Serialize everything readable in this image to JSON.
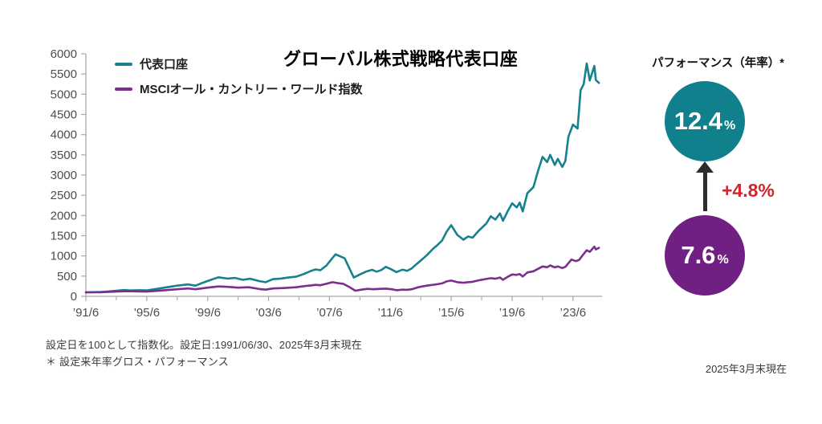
{
  "chart": {
    "title": "グローバル株式戦略代表口座"
  },
  "performance_panel": {
    "title": "パフォーマンス（年率）*",
    "fund": {
      "value": "12.4",
      "unit": "%",
      "color": "#10808d"
    },
    "index": {
      "value": "7.6",
      "unit": "%",
      "color": "#702082"
    },
    "difference": "+4.8%",
    "difference_color": "#d2262e",
    "arrow_color": "#2d2d2d"
  },
  "footnotes": {
    "line1": "設定日を100として指数化。設定日:1991/06/30、2025年3月末現在",
    "line2": "＊ 設定来年率グロス・パフォーマンス",
    "bottom_right": "2025年3月末現在"
  },
  "chart_data": {
    "type": "line",
    "title": "グローバル株式戦略代表口座",
    "xlabel": "",
    "ylabel": "",
    "ylim": [
      0,
      6000
    ],
    "x_range": [
      1991.5,
      2025.25
    ],
    "grid": false,
    "legend_position": "top-left",
    "y_ticks": [
      0,
      500,
      1000,
      1500,
      2000,
      2500,
      3000,
      3500,
      4000,
      4500,
      5000,
      5500,
      6000
    ],
    "x_tick_labels": [
      "’91/6",
      "’95/6",
      "’99/6",
      "’03/6",
      "’07/6",
      "’11/6",
      "’15/6",
      "’19/6",
      "’23/6"
    ],
    "x_tick_years": [
      1991.5,
      1995.5,
      1999.5,
      2003.5,
      2007.5,
      2011.5,
      2015.5,
      2019.5,
      2023.5
    ],
    "x_minor_tick_years": [
      1993.5,
      1997.5,
      2001.5,
      2005.5,
      2009.5,
      2013.5,
      2017.5,
      2021.5
    ],
    "axis_color": "#a9a9a9",
    "tick_label_color": "#4c4c4c",
    "base_index_value": 100,
    "series": [
      {
        "name": "代表口座",
        "color": "#17818e",
        "points": [
          [
            1991.5,
            100
          ],
          [
            1992,
            103
          ],
          [
            1992.5,
            108
          ],
          [
            1993,
            122
          ],
          [
            1993.5,
            140
          ],
          [
            1994,
            155
          ],
          [
            1994.4,
            145
          ],
          [
            1995,
            150
          ],
          [
            1995.5,
            147
          ],
          [
            1996,
            175
          ],
          [
            1996.5,
            205
          ],
          [
            1997,
            235
          ],
          [
            1997.5,
            265
          ],
          [
            1998.2,
            295
          ],
          [
            1998.7,
            265
          ],
          [
            1999,
            310
          ],
          [
            1999.5,
            380
          ],
          [
            2000.2,
            470
          ],
          [
            2000.8,
            440
          ],
          [
            2001.3,
            455
          ],
          [
            2001.8,
            410
          ],
          [
            2002.3,
            435
          ],
          [
            2002.9,
            375
          ],
          [
            2003.3,
            350
          ],
          [
            2003.8,
            425
          ],
          [
            2004.3,
            440
          ],
          [
            2004.8,
            465
          ],
          [
            2005.3,
            485
          ],
          [
            2005.8,
            550
          ],
          [
            2006.3,
            630
          ],
          [
            2006.6,
            665
          ],
          [
            2006.9,
            645
          ],
          [
            2007.3,
            760
          ],
          [
            2007.7,
            950
          ],
          [
            2007.9,
            1040
          ],
          [
            2008.2,
            990
          ],
          [
            2008.5,
            940
          ],
          [
            2008.8,
            700
          ],
          [
            2009.1,
            465
          ],
          [
            2009.5,
            540
          ],
          [
            2009.9,
            610
          ],
          [
            2010.3,
            655
          ],
          [
            2010.6,
            610
          ],
          [
            2010.9,
            650
          ],
          [
            2011.2,
            730
          ],
          [
            2011.5,
            680
          ],
          [
            2011.9,
            600
          ],
          [
            2012.3,
            660
          ],
          [
            2012.6,
            630
          ],
          [
            2012.9,
            690
          ],
          [
            2013.2,
            790
          ],
          [
            2013.6,
            920
          ],
          [
            2013.9,
            1020
          ],
          [
            2014.3,
            1175
          ],
          [
            2014.6,
            1270
          ],
          [
            2014.9,
            1380
          ],
          [
            2015.2,
            1600
          ],
          [
            2015.5,
            1760
          ],
          [
            2015.9,
            1520
          ],
          [
            2016.3,
            1400
          ],
          [
            2016.6,
            1480
          ],
          [
            2016.9,
            1450
          ],
          [
            2017.3,
            1620
          ],
          [
            2017.8,
            1800
          ],
          [
            2018.1,
            1980
          ],
          [
            2018.4,
            1900
          ],
          [
            2018.7,
            2050
          ],
          [
            2018.9,
            1870
          ],
          [
            2019.2,
            2100
          ],
          [
            2019.5,
            2300
          ],
          [
            2019.8,
            2200
          ],
          [
            2020,
            2320
          ],
          [
            2020.2,
            2100
          ],
          [
            2020.5,
            2550
          ],
          [
            2020.9,
            2700
          ],
          [
            2021.2,
            3100
          ],
          [
            2021.5,
            3450
          ],
          [
            2021.8,
            3320
          ],
          [
            2022,
            3500
          ],
          [
            2022.3,
            3250
          ],
          [
            2022.5,
            3400
          ],
          [
            2022.8,
            3200
          ],
          [
            2023,
            3350
          ],
          [
            2023.2,
            3950
          ],
          [
            2023.5,
            4250
          ],
          [
            2023.8,
            4150
          ],
          [
            2024,
            5100
          ],
          [
            2024.2,
            5250
          ],
          [
            2024.4,
            5760
          ],
          [
            2024.6,
            5340
          ],
          [
            2024.9,
            5700
          ],
          [
            2025,
            5350
          ],
          [
            2025.2,
            5280
          ]
        ]
      },
      {
        "name": "MSCIオール・カントリー・ワールド指数",
        "color": "#7c2e8c",
        "points": [
          [
            1991.5,
            100
          ],
          [
            1992.5,
            102
          ],
          [
            1993.5,
            118
          ],
          [
            1994.2,
            128
          ],
          [
            1995,
            122
          ],
          [
            1995.5,
            118
          ],
          [
            1996.5,
            145
          ],
          [
            1997.5,
            175
          ],
          [
            1998.2,
            195
          ],
          [
            1998.7,
            175
          ],
          [
            1999.5,
            215
          ],
          [
            2000.2,
            245
          ],
          [
            2000.8,
            235
          ],
          [
            2001.5,
            215
          ],
          [
            2002.2,
            225
          ],
          [
            2002.9,
            180
          ],
          [
            2003.3,
            165
          ],
          [
            2003.8,
            195
          ],
          [
            2004.5,
            205
          ],
          [
            2005.3,
            225
          ],
          [
            2005.8,
            250
          ],
          [
            2006.3,
            270
          ],
          [
            2006.6,
            285
          ],
          [
            2006.9,
            275
          ],
          [
            2007.3,
            310
          ],
          [
            2007.7,
            350
          ],
          [
            2008,
            330
          ],
          [
            2008.4,
            310
          ],
          [
            2008.8,
            230
          ],
          [
            2009.2,
            140
          ],
          [
            2009.6,
            165
          ],
          [
            2010,
            185
          ],
          [
            2010.4,
            175
          ],
          [
            2010.8,
            185
          ],
          [
            2011.2,
            190
          ],
          [
            2011.6,
            175
          ],
          [
            2011.9,
            150
          ],
          [
            2012.3,
            165
          ],
          [
            2012.6,
            160
          ],
          [
            2012.9,
            175
          ],
          [
            2013.3,
            220
          ],
          [
            2013.6,
            245
          ],
          [
            2013.9,
            265
          ],
          [
            2014.3,
            285
          ],
          [
            2014.6,
            300
          ],
          [
            2014.9,
            320
          ],
          [
            2015.2,
            370
          ],
          [
            2015.5,
            390
          ],
          [
            2015.9,
            350
          ],
          [
            2016.3,
            335
          ],
          [
            2016.6,
            350
          ],
          [
            2016.9,
            360
          ],
          [
            2017.3,
            395
          ],
          [
            2017.8,
            430
          ],
          [
            2018.1,
            450
          ],
          [
            2018.4,
            435
          ],
          [
            2018.7,
            465
          ],
          [
            2018.9,
            410
          ],
          [
            2019.2,
            480
          ],
          [
            2019.5,
            540
          ],
          [
            2019.8,
            530
          ],
          [
            2020,
            550
          ],
          [
            2020.2,
            490
          ],
          [
            2020.5,
            590
          ],
          [
            2020.9,
            620
          ],
          [
            2021.2,
            680
          ],
          [
            2021.5,
            740
          ],
          [
            2021.8,
            720
          ],
          [
            2022,
            765
          ],
          [
            2022.3,
            715
          ],
          [
            2022.5,
            740
          ],
          [
            2022.8,
            700
          ],
          [
            2023,
            730
          ],
          [
            2023.4,
            910
          ],
          [
            2023.7,
            870
          ],
          [
            2023.9,
            900
          ],
          [
            2024.1,
            1000
          ],
          [
            2024.4,
            1140
          ],
          [
            2024.6,
            1100
          ],
          [
            2024.9,
            1230
          ],
          [
            2025,
            1160
          ],
          [
            2025.2,
            1200
          ]
        ]
      }
    ]
  }
}
